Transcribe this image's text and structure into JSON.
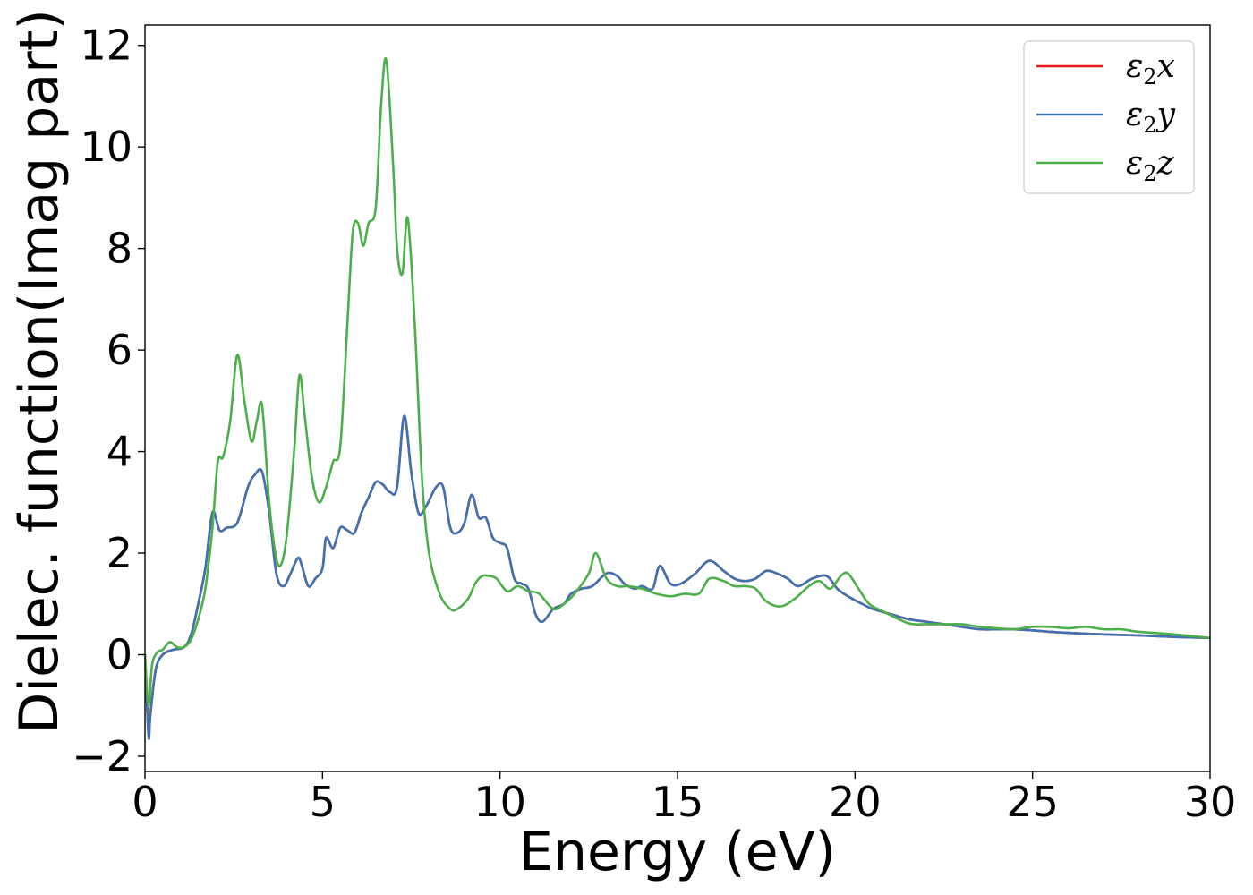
{
  "chart_data": {
    "type": "line",
    "xlabel": "Energy (eV)",
    "ylabel": "Dielec. function(Imag part)",
    "xlim": [
      0,
      30
    ],
    "ylim": [
      -2.3,
      12.4
    ],
    "xticks": [
      0,
      5,
      10,
      15,
      20,
      25,
      30
    ],
    "yticks": [
      -2,
      0,
      2,
      4,
      6,
      8,
      10,
      12
    ],
    "xtick_labels": [
      "0",
      "5",
      "10",
      "15",
      "20",
      "25",
      "30"
    ],
    "ytick_labels": [
      "−2",
      "0",
      "2",
      "4",
      "6",
      "8",
      "10",
      "12"
    ],
    "grid": false,
    "legend_position": "top-right",
    "series": [
      {
        "name": "ε₂x",
        "legend_main": "ε",
        "legend_sub": "2",
        "legend_var": "x",
        "color": "#e41a1c",
        "x": [
          0,
          0.1,
          0.15,
          0.3,
          0.5,
          0.8,
          1.1,
          1.3,
          1.5,
          1.7,
          1.9,
          2.1,
          2.3,
          2.6,
          2.9,
          3.1,
          3.3,
          3.5,
          3.7,
          3.9,
          4.1,
          4.3,
          4.4,
          4.6,
          4.8,
          5.0,
          5.1,
          5.3,
          5.5,
          5.7,
          5.9,
          6.1,
          6.3,
          6.5,
          6.7,
          6.9,
          7.1,
          7.3,
          7.5,
          7.7,
          7.9,
          8.2,
          8.4,
          8.6,
          8.8,
          9.0,
          9.2,
          9.4,
          9.6,
          9.8,
          10.0,
          10.2,
          10.4,
          10.6,
          10.8,
          11.0,
          11.2,
          11.5,
          11.8,
          12.0,
          12.3,
          12.6,
          13.0,
          13.3,
          13.5,
          13.8,
          14.0,
          14.3,
          14.5,
          14.8,
          15.1,
          15.5,
          15.9,
          16.3,
          16.6,
          16.9,
          17.2,
          17.5,
          17.8,
          18.1,
          18.4,
          18.8,
          19.2,
          19.5,
          19.8,
          20.2,
          20.5,
          21.0,
          21.5,
          22.0,
          22.5,
          23.0,
          23.5,
          24.0,
          24.5,
          25.0,
          25.5,
          26.0,
          27.0,
          28.0,
          29.0,
          30.0
        ],
        "y": [
          0.0,
          -1.6,
          -1.2,
          -0.3,
          0.0,
          0.1,
          0.15,
          0.4,
          1.0,
          1.7,
          2.8,
          2.45,
          2.5,
          2.6,
          3.3,
          3.55,
          3.6,
          2.8,
          1.6,
          1.35,
          1.6,
          1.9,
          1.8,
          1.35,
          1.5,
          1.7,
          2.3,
          2.1,
          2.5,
          2.45,
          2.4,
          2.8,
          3.1,
          3.4,
          3.35,
          3.2,
          3.3,
          4.7,
          3.6,
          2.8,
          2.9,
          3.3,
          3.3,
          2.5,
          2.4,
          2.6,
          3.15,
          2.7,
          2.7,
          2.3,
          2.2,
          2.1,
          1.5,
          1.4,
          1.3,
          0.8,
          0.65,
          0.9,
          1.0,
          1.2,
          1.3,
          1.35,
          1.6,
          1.55,
          1.4,
          1.3,
          1.35,
          1.3,
          1.75,
          1.4,
          1.4,
          1.6,
          1.85,
          1.65,
          1.5,
          1.45,
          1.5,
          1.65,
          1.6,
          1.5,
          1.35,
          1.5,
          1.55,
          1.3,
          1.15,
          1.0,
          0.9,
          0.8,
          0.7,
          0.65,
          0.6,
          0.55,
          0.5,
          0.5,
          0.5,
          0.48,
          0.45,
          0.43,
          0.4,
          0.38,
          0.35,
          0.33
        ]
      },
      {
        "name": "ε₂y",
        "legend_main": "ε",
        "legend_sub": "2",
        "legend_var": "y",
        "color": "#3f72b0",
        "x": [
          0,
          0.1,
          0.15,
          0.3,
          0.5,
          0.8,
          1.1,
          1.3,
          1.5,
          1.7,
          1.9,
          2.1,
          2.3,
          2.6,
          2.9,
          3.1,
          3.3,
          3.5,
          3.7,
          3.9,
          4.1,
          4.3,
          4.4,
          4.6,
          4.8,
          5.0,
          5.1,
          5.3,
          5.5,
          5.7,
          5.9,
          6.1,
          6.3,
          6.5,
          6.7,
          6.9,
          7.1,
          7.3,
          7.5,
          7.7,
          7.9,
          8.2,
          8.4,
          8.6,
          8.8,
          9.0,
          9.2,
          9.4,
          9.6,
          9.8,
          10.0,
          10.2,
          10.4,
          10.6,
          10.8,
          11.0,
          11.2,
          11.5,
          11.8,
          12.0,
          12.3,
          12.6,
          13.0,
          13.3,
          13.5,
          13.8,
          14.0,
          14.3,
          14.5,
          14.8,
          15.1,
          15.5,
          15.9,
          16.3,
          16.6,
          16.9,
          17.2,
          17.5,
          17.8,
          18.1,
          18.4,
          18.8,
          19.2,
          19.5,
          19.8,
          20.2,
          20.5,
          21.0,
          21.5,
          22.0,
          22.5,
          23.0,
          23.5,
          24.0,
          24.5,
          25.0,
          25.5,
          26.0,
          27.0,
          28.0,
          29.0,
          30.0
        ],
        "y": [
          0.0,
          -1.6,
          -1.2,
          -0.3,
          0.0,
          0.1,
          0.15,
          0.4,
          1.0,
          1.7,
          2.8,
          2.45,
          2.5,
          2.6,
          3.3,
          3.55,
          3.6,
          2.8,
          1.6,
          1.35,
          1.6,
          1.9,
          1.8,
          1.35,
          1.5,
          1.7,
          2.3,
          2.1,
          2.5,
          2.45,
          2.4,
          2.8,
          3.1,
          3.4,
          3.35,
          3.2,
          3.3,
          4.7,
          3.6,
          2.8,
          2.9,
          3.3,
          3.3,
          2.5,
          2.4,
          2.6,
          3.15,
          2.7,
          2.7,
          2.3,
          2.2,
          2.1,
          1.5,
          1.4,
          1.3,
          0.8,
          0.65,
          0.9,
          1.0,
          1.2,
          1.3,
          1.35,
          1.6,
          1.55,
          1.4,
          1.3,
          1.35,
          1.3,
          1.75,
          1.4,
          1.4,
          1.6,
          1.85,
          1.65,
          1.5,
          1.45,
          1.5,
          1.65,
          1.6,
          1.5,
          1.35,
          1.5,
          1.55,
          1.3,
          1.15,
          1.0,
          0.9,
          0.8,
          0.7,
          0.65,
          0.6,
          0.55,
          0.5,
          0.5,
          0.5,
          0.48,
          0.45,
          0.43,
          0.4,
          0.38,
          0.35,
          0.33
        ]
      },
      {
        "name": "ε₂z",
        "legend_main": "ε",
        "legend_sub": "2",
        "legend_var": "z",
        "color": "#4daf4a",
        "x": [
          0,
          0.1,
          0.2,
          0.35,
          0.5,
          0.7,
          0.9,
          1.1,
          1.3,
          1.5,
          1.7,
          1.9,
          2.05,
          2.2,
          2.4,
          2.6,
          2.8,
          3.0,
          3.15,
          3.3,
          3.5,
          3.7,
          3.85,
          4.0,
          4.2,
          4.35,
          4.5,
          4.7,
          4.9,
          5.1,
          5.3,
          5.5,
          5.7,
          5.85,
          6.0,
          6.15,
          6.3,
          6.5,
          6.65,
          6.8,
          7.0,
          7.1,
          7.25,
          7.4,
          7.6,
          7.8,
          8.0,
          8.3,
          8.6,
          8.8,
          9.1,
          9.3,
          9.5,
          9.7,
          9.9,
          10.2,
          10.5,
          10.8,
          11.1,
          11.5,
          11.8,
          12.1,
          12.5,
          12.7,
          13.0,
          13.3,
          13.6,
          14.0,
          14.4,
          14.8,
          15.2,
          15.6,
          15.9,
          16.3,
          16.6,
          16.9,
          17.2,
          17.5,
          17.9,
          18.3,
          18.7,
          19.0,
          19.3,
          19.6,
          19.8,
          20.1,
          20.4,
          20.8,
          21.5,
          22.0,
          22.5,
          23.0,
          23.5,
          24.0,
          24.5,
          25.0,
          25.5,
          26.0,
          26.5,
          27.0,
          27.5,
          28.0,
          29.0,
          30.0
        ],
        "y": [
          0.0,
          -1.0,
          -0.2,
          0.05,
          0.1,
          0.25,
          0.15,
          0.15,
          0.3,
          0.7,
          1.3,
          2.5,
          3.8,
          3.9,
          4.6,
          5.9,
          5.0,
          4.2,
          4.6,
          4.9,
          3.0,
          1.9,
          1.8,
          2.4,
          4.0,
          5.5,
          4.7,
          3.5,
          3.0,
          3.3,
          3.8,
          4.1,
          6.5,
          8.3,
          8.5,
          8.05,
          8.5,
          8.8,
          10.8,
          11.7,
          9.5,
          8.0,
          7.5,
          8.6,
          6.5,
          3.5,
          2.0,
          1.2,
          0.9,
          0.9,
          1.1,
          1.4,
          1.55,
          1.55,
          1.5,
          1.25,
          1.35,
          1.25,
          1.2,
          0.9,
          1.0,
          1.2,
          1.6,
          2.0,
          1.5,
          1.35,
          1.35,
          1.3,
          1.2,
          1.15,
          1.2,
          1.2,
          1.5,
          1.45,
          1.35,
          1.35,
          1.3,
          1.05,
          0.95,
          1.1,
          1.35,
          1.45,
          1.3,
          1.55,
          1.6,
          1.3,
          1.0,
          0.85,
          0.62,
          0.6,
          0.6,
          0.6,
          0.55,
          0.52,
          0.5,
          0.55,
          0.55,
          0.52,
          0.55,
          0.5,
          0.5,
          0.45,
          0.4,
          0.33
        ]
      }
    ]
  }
}
